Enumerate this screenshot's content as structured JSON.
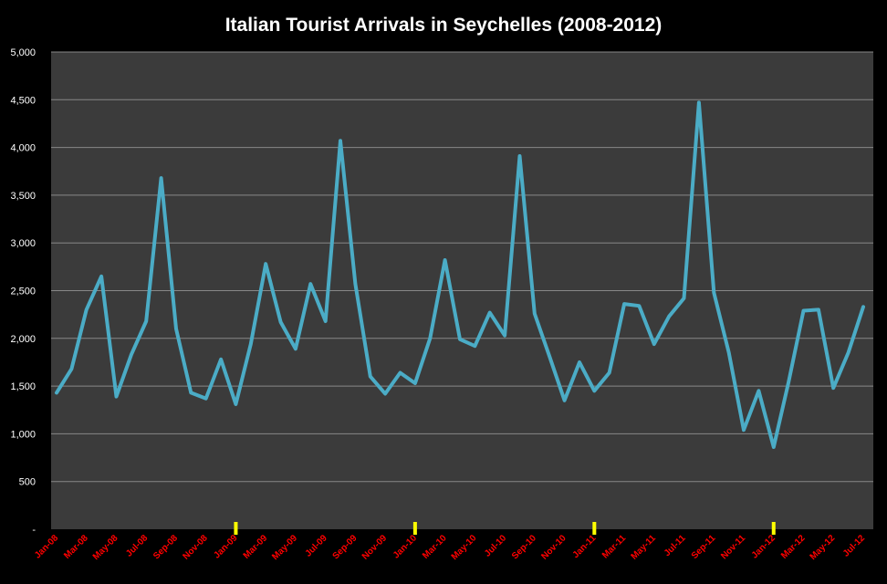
{
  "chart_data": {
    "type": "line",
    "title": "Italian Tourist Arrivals in Seychelles (2008-2012)",
    "xlabel": "",
    "ylabel": "",
    "ylim": [
      0,
      5000
    ],
    "y_ticks": [
      "-",
      "500",
      "1,000",
      "1,500",
      "2,000",
      "2,500",
      "3,000",
      "3,500",
      "4,000",
      "4,500",
      "5,000"
    ],
    "x_tick_labels": [
      "Jan-08",
      "Mar-08",
      "May-08",
      "Jul-08",
      "Sep-08",
      "Nov-08",
      "Jan-09",
      "Mar-09",
      "May-09",
      "Jul-09",
      "Sep-09",
      "Nov-09",
      "Jan-10",
      "Mar-10",
      "May-10",
      "Jul-10",
      "Sep-10",
      "Nov-10",
      "Jan-11",
      "Mar-11",
      "May-11",
      "Jul-11",
      "Sep-11",
      "Nov-11",
      "Jan-12",
      "Mar-12",
      "May-12",
      "Jul-12"
    ],
    "x": [
      "Jan-08",
      "Feb-08",
      "Mar-08",
      "Apr-08",
      "May-08",
      "Jun-08",
      "Jul-08",
      "Aug-08",
      "Sep-08",
      "Oct-08",
      "Nov-08",
      "Dec-08",
      "Jan-09",
      "Feb-09",
      "Mar-09",
      "Apr-09",
      "May-09",
      "Jun-09",
      "Jul-09",
      "Aug-09",
      "Sep-09",
      "Oct-09",
      "Nov-09",
      "Dec-09",
      "Jan-10",
      "Feb-10",
      "Mar-10",
      "Apr-10",
      "May-10",
      "Jun-10",
      "Jul-10",
      "Aug-10",
      "Sep-10",
      "Oct-10",
      "Nov-10",
      "Dec-10",
      "Jan-11",
      "Feb-11",
      "Mar-11",
      "Apr-11",
      "May-11",
      "Jun-11",
      "Jul-11",
      "Aug-11",
      "Sep-11",
      "Oct-11",
      "Nov-11",
      "Dec-11",
      "Jan-12",
      "Feb-12",
      "Mar-12",
      "Apr-12",
      "May-12",
      "Jun-12",
      "Jul-12"
    ],
    "series": [
      {
        "name": "",
        "color": "#4bacc6",
        "values": [
          1430,
          1680,
          2300,
          2650,
          1390,
          1830,
          2180,
          3680,
          2100,
          1430,
          1370,
          1780,
          1310,
          1940,
          2780,
          2170,
          1890,
          2570,
          2180,
          4070,
          2570,
          1600,
          1420,
          1640,
          1530,
          2000,
          2820,
          1990,
          1920,
          2270,
          2030,
          3910,
          2260,
          1810,
          1350,
          1750,
          1450,
          1640,
          2360,
          2340,
          1940,
          2230,
          2420,
          4470,
          2480,
          1850,
          1040,
          1450,
          860,
          1540,
          2290,
          2300,
          1480,
          1850,
          2330
        ]
      }
    ],
    "year_markers": [
      "Jan-09",
      "Jan-10",
      "Jan-11",
      "Jan-12"
    ],
    "grid": true,
    "legend": "none",
    "colors": {
      "background": "#000000",
      "plot_area": "#3b3b3b",
      "gridline": "#888888",
      "line": "#4bacc6",
      "x_tick_label": "#ff0000",
      "y_tick_label": "#ffffff",
      "year_marker": "#ffff00"
    }
  }
}
